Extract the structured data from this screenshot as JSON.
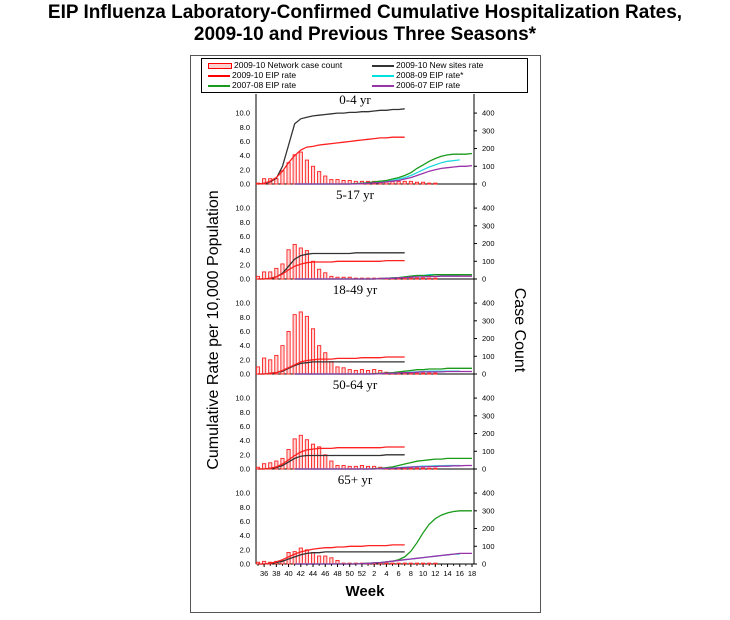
{
  "title": {
    "line1": "EIP Influenza Laboratory-Confirmed Cumulative Hospitalization Rates,",
    "line2": "2009-10 and Previous Three Seasons*"
  },
  "legend": [
    {
      "label": "2009-10 Network case count",
      "color": "#ff0000",
      "kind": "bar"
    },
    {
      "label": "2009-10 New sites rate",
      "color": "#333333",
      "kind": "line"
    },
    {
      "label": "2009-10 EIP rate",
      "color": "#ff0000",
      "kind": "line"
    },
    {
      "label": "2008-09 EIP rate*",
      "color": "#00e0e0",
      "kind": "line"
    },
    {
      "label": "2007-08 EIP rate",
      "color": "#1a9a1a",
      "kind": "line"
    },
    {
      "label": "2006-07 EIP rate",
      "color": "#9933aa",
      "kind": "line"
    }
  ],
  "chart_data": {
    "type": "line",
    "title": "EIP Influenza Laboratory-Confirmed Cumulative Hospitalization Rates, 2009-10 and Previous Three Seasons*",
    "xlabel": "Week",
    "ylabel": "Cumulative Rate per 10,000 Population",
    "y2label": "Case  Count",
    "x_ticks": [
      "36",
      "38",
      "40",
      "42",
      "44",
      "46",
      "48",
      "50",
      "52",
      "2",
      "4",
      "6",
      "8",
      "10",
      "12",
      "14",
      "16",
      "18"
    ],
    "y_ticks": [
      "0.0",
      "2.0",
      "4.0",
      "6.0",
      "8.0",
      "10.0"
    ],
    "y2_ticks": [
      "0",
      "100",
      "200",
      "300",
      "400"
    ],
    "ylim": [
      0,
      11
    ],
    "y2lim": [
      0,
      440
    ],
    "legend_position": "top",
    "grid": false,
    "panels": [
      {
        "label": "0-4 yr",
        "case_count": [
          5,
          30,
          30,
          30,
          75,
          120,
          165,
          180,
          135,
          100,
          70,
          45,
          25,
          25,
          20,
          20,
          15,
          15,
          15,
          15,
          15,
          15,
          15,
          15,
          15,
          15,
          10,
          10,
          5,
          5
        ],
        "series": [
          {
            "name": "2009-10 New sites rate",
            "values": [
              0,
              0.1,
              0.3,
              0.8,
              2.5,
              5.5,
              8.5,
              9.2,
              9.4,
              9.6,
              9.7,
              9.8,
              9.9,
              10.0,
              10.0,
              10.1,
              10.1,
              10.2,
              10.2,
              10.3,
              10.4,
              10.4,
              10.5,
              10.5,
              10.6
            ]
          },
          {
            "name": "2009-10 EIP rate",
            "values": [
              0,
              0.1,
              0.4,
              0.9,
              1.8,
              3.0,
              4.0,
              4.8,
              5.2,
              5.3,
              5.5,
              5.6,
              5.7,
              5.8,
              5.9,
              6.0,
              6.1,
              6.2,
              6.3,
              6.4,
              6.5,
              6.5,
              6.6,
              6.6,
              6.6
            ]
          },
          {
            "name": "2008-09 EIP rate*",
            "values": [
              0,
              0,
              0,
              0,
              0,
              0,
              0,
              0,
              0,
              0,
              0.05,
              0.1,
              0.15,
              0.2,
              0.3,
              0.4,
              0.5,
              0.7,
              0.9,
              1.2,
              1.6,
              2.0,
              2.4,
              2.7,
              3.0,
              3.2,
              3.3,
              3.4
            ]
          },
          {
            "name": "2007-08 EIP rate",
            "values": [
              0,
              0,
              0,
              0,
              0,
              0,
              0,
              0,
              0,
              0,
              0.05,
              0.1,
              0.2,
              0.3,
              0.4,
              0.5,
              0.7,
              0.9,
              1.2,
              1.6,
              2.2,
              2.7,
              3.2,
              3.6,
              3.9,
              4.1,
              4.2,
              4.2,
              4.2,
              4.3
            ]
          },
          {
            "name": "2006-07 EIP rate",
            "values": [
              0,
              0,
              0,
              0,
              0,
              0,
              0,
              0,
              0,
              0,
              0,
              0.05,
              0.1,
              0.15,
              0.2,
              0.3,
              0.4,
              0.5,
              0.7,
              0.9,
              1.2,
              1.5,
              1.8,
              2.0,
              2.2,
              2.3,
              2.4,
              2.5,
              2.5,
              2.6
            ]
          }
        ]
      },
      {
        "label": "5-17 yr",
        "case_count": [
          15,
          40,
          40,
          60,
          85,
          165,
          195,
          175,
          160,
          100,
          55,
          35,
          15,
          10,
          10,
          10,
          5,
          5,
          5,
          5,
          5,
          5,
          5,
          5,
          5,
          5,
          5,
          5,
          5,
          5
        ],
        "series": [
          {
            "name": "2009-10 New sites rate",
            "values": [
              0,
              0,
              0.1,
              0.3,
              0.8,
              1.8,
              2.8,
              3.3,
              3.5,
              3.6,
              3.6,
              3.6,
              3.6,
              3.6,
              3.6,
              3.6,
              3.7,
              3.7,
              3.7,
              3.7,
              3.7,
              3.7,
              3.7,
              3.7,
              3.7
            ]
          },
          {
            "name": "2009-10 EIP rate",
            "values": [
              0,
              0,
              0.1,
              0.3,
              0.7,
              1.3,
              1.8,
              2.1,
              2.3,
              2.4,
              2.4,
              2.4,
              2.4,
              2.5,
              2.5,
              2.5,
              2.5,
              2.5,
              2.5,
              2.5,
              2.5,
              2.6,
              2.6,
              2.6,
              2.6
            ]
          },
          {
            "name": "2008-09 EIP rate*",
            "values": [
              0,
              0,
              0,
              0,
              0,
              0,
              0,
              0,
              0,
              0,
              0,
              0,
              0,
              0,
              0.05,
              0.1,
              0.15,
              0.2,
              0.3,
              0.4,
              0.5,
              0.5,
              0.6,
              0.6,
              0.6,
              0.6,
              0.6,
              0.6
            ]
          },
          {
            "name": "2007-08 EIP rate",
            "values": [
              0,
              0,
              0,
              0,
              0,
              0,
              0,
              0,
              0,
              0,
              0,
              0,
              0,
              0,
              0.05,
              0.1,
              0.15,
              0.2,
              0.3,
              0.4,
              0.5,
              0.5,
              0.5,
              0.6,
              0.6,
              0.6,
              0.6,
              0.6,
              0.6,
              0.6
            ]
          },
          {
            "name": "2006-07 EIP rate",
            "values": [
              0,
              0,
              0,
              0,
              0,
              0,
              0,
              0,
              0,
              0,
              0,
              0,
              0,
              0,
              0.05,
              0.1,
              0.1,
              0.15,
              0.2,
              0.25,
              0.3,
              0.3,
              0.35,
              0.35,
              0.4,
              0.4,
              0.4,
              0.4,
              0.4,
              0.4
            ]
          }
        ]
      },
      {
        "label": "18-49 yr",
        "case_count": [
          40,
          90,
          80,
          105,
          160,
          240,
          335,
          350,
          325,
          255,
          160,
          120,
          70,
          40,
          35,
          25,
          20,
          25,
          20,
          25,
          20,
          10,
          5,
          5,
          5,
          5,
          5,
          5,
          5,
          5
        ],
        "series": [
          {
            "name": "2009-10 New sites rate",
            "values": [
              0,
              0,
              0.1,
              0.2,
              0.4,
              0.8,
              1.2,
              1.5,
              1.6,
              1.7,
              1.7,
              1.7,
              1.7,
              1.7,
              1.7,
              1.7,
              1.7,
              1.7,
              1.7,
              1.7,
              1.7,
              1.7,
              1.7,
              1.7,
              1.7
            ]
          },
          {
            "name": "2009-10 EIP rate",
            "values": [
              0,
              0,
              0.1,
              0.2,
              0.5,
              0.9,
              1.3,
              1.7,
              1.9,
              2.0,
              2.1,
              2.1,
              2.1,
              2.2,
              2.2,
              2.2,
              2.2,
              2.3,
              2.3,
              2.3,
              2.3,
              2.4,
              2.4,
              2.4,
              2.4
            ]
          },
          {
            "name": "2008-09 EIP rate*",
            "values": [
              0,
              0,
              0,
              0,
              0,
              0,
              0,
              0,
              0,
              0,
              0,
              0,
              0,
              0,
              0.05,
              0.1,
              0.1,
              0.15,
              0.2,
              0.25,
              0.3,
              0.35,
              0.4,
              0.4,
              0.4,
              0.4,
              0.4,
              0.4
            ]
          },
          {
            "name": "2007-08 EIP rate",
            "values": [
              0,
              0,
              0,
              0,
              0,
              0,
              0,
              0,
              0,
              0,
              0,
              0,
              0,
              0.05,
              0.1,
              0.15,
              0.2,
              0.3,
              0.4,
              0.5,
              0.6,
              0.6,
              0.7,
              0.7,
              0.7,
              0.8,
              0.8,
              0.8,
              0.8,
              0.8
            ]
          },
          {
            "name": "2006-07 EIP rate",
            "values": [
              0,
              0,
              0,
              0,
              0,
              0,
              0,
              0,
              0,
              0,
              0,
              0,
              0,
              0,
              0.05,
              0.1,
              0.1,
              0.15,
              0.2,
              0.2,
              0.25,
              0.3,
              0.3,
              0.3,
              0.3,
              0.35,
              0.35,
              0.35,
              0.35,
              0.35
            ]
          }
        ]
      },
      {
        "label": "50-64 yr",
        "case_count": [
          10,
          30,
          35,
          45,
          60,
          110,
          170,
          190,
          165,
          140,
          125,
          80,
          45,
          20,
          20,
          15,
          15,
          20,
          15,
          15,
          10,
          5,
          5,
          5,
          5,
          5,
          5,
          5,
          5,
          5
        ],
        "series": [
          {
            "name": "2009-10 New sites rate",
            "values": [
              0,
              0,
              0.1,
              0.2,
              0.5,
              1.0,
              1.5,
              1.8,
              1.9,
              1.9,
              1.9,
              1.9,
              1.9,
              1.9,
              1.9,
              1.9,
              1.9,
              1.9,
              1.9,
              1.9,
              1.9,
              2.0,
              2.0,
              2.0,
              2.0
            ]
          },
          {
            "name": "2009-10 EIP rate",
            "values": [
              0,
              0,
              0.1,
              0.3,
              0.7,
              1.3,
              1.9,
              2.4,
              2.7,
              2.8,
              2.9,
              2.9,
              2.9,
              3.0,
              3.0,
              3.0,
              3.0,
              3.0,
              3.0,
              3.0,
              3.0,
              3.1,
              3.1,
              3.1,
              3.1
            ]
          },
          {
            "name": "2008-09 EIP rate*",
            "values": [
              0,
              0,
              0,
              0,
              0,
              0,
              0,
              0,
              0,
              0,
              0,
              0,
              0,
              0,
              0.05,
              0.1,
              0.15,
              0.2,
              0.25,
              0.3,
              0.35,
              0.4,
              0.4,
              0.45,
              0.45,
              0.5,
              0.5,
              0.5
            ]
          },
          {
            "name": "2007-08 EIP rate",
            "values": [
              0,
              0,
              0,
              0,
              0,
              0,
              0,
              0,
              0,
              0,
              0,
              0,
              0,
              0.05,
              0.1,
              0.2,
              0.3,
              0.5,
              0.7,
              0.9,
              1.1,
              1.2,
              1.3,
              1.4,
              1.4,
              1.5,
              1.5,
              1.5,
              1.5,
              1.5
            ]
          },
          {
            "name": "2006-07 EIP rate",
            "values": [
              0,
              0,
              0,
              0,
              0,
              0,
              0,
              0,
              0,
              0,
              0,
              0,
              0,
              0,
              0.05,
              0.1,
              0.1,
              0.15,
              0.2,
              0.25,
              0.3,
              0.3,
              0.35,
              0.35,
              0.4,
              0.4,
              0.45,
              0.45,
              0.5,
              0.5
            ]
          }
        ]
      },
      {
        "label": "65+ yr",
        "case_count": [
          10,
          15,
          10,
          15,
          20,
          65,
          70,
          90,
          80,
          65,
          45,
          45,
          35,
          20,
          5,
          5,
          5,
          5,
          5,
          5,
          5,
          5,
          5,
          5,
          5,
          5,
          5,
          5,
          5,
          5
        ],
        "series": [
          {
            "name": "2009-10 New sites rate",
            "values": [
              0,
              0,
              0.1,
              0.2,
              0.4,
              0.7,
              1.0,
              1.3,
              1.5,
              1.6,
              1.6,
              1.7,
              1.7,
              1.7,
              1.7,
              1.7,
              1.7,
              1.7,
              1.7,
              1.7,
              1.7,
              1.7,
              1.7,
              1.7,
              1.7
            ]
          },
          {
            "name": "2009-10 EIP rate",
            "values": [
              0,
              0,
              0.1,
              0.3,
              0.6,
              1.0,
              1.4,
              1.7,
              1.9,
              2.1,
              2.2,
              2.3,
              2.3,
              2.4,
              2.4,
              2.5,
              2.5,
              2.5,
              2.6,
              2.6,
              2.6,
              2.6,
              2.7,
              2.7,
              2.7
            ]
          },
          {
            "name": "2008-09 EIP rate*",
            "values": [
              0,
              0,
              0,
              0,
              0,
              0,
              0,
              0,
              0,
              0,
              0,
              0.05,
              0.1,
              0.15,
              0.2,
              0.3,
              0.4,
              0.5,
              0.6,
              0.7,
              0.8,
              0.9,
              1.0,
              1.1,
              1.2,
              1.3,
              1.4,
              1.4
            ]
          },
          {
            "name": "2007-08 EIP rate",
            "values": [
              0,
              0,
              0,
              0,
              0,
              0,
              0,
              0,
              0,
              0,
              0,
              0.05,
              0.1,
              0.15,
              0.2,
              0.3,
              0.4,
              0.6,
              1.0,
              1.8,
              3.0,
              4.4,
              5.6,
              6.4,
              6.9,
              7.2,
              7.4,
              7.5,
              7.5,
              7.5
            ]
          },
          {
            "name": "2006-07 EIP rate",
            "values": [
              0,
              0,
              0,
              0,
              0,
              0,
              0,
              0,
              0,
              0,
              0,
              0.05,
              0.1,
              0.15,
              0.2,
              0.3,
              0.4,
              0.5,
              0.6,
              0.7,
              0.8,
              0.9,
              1.0,
              1.1,
              1.2,
              1.3,
              1.4,
              1.5,
              1.5,
              1.5
            ]
          }
        ]
      }
    ]
  }
}
